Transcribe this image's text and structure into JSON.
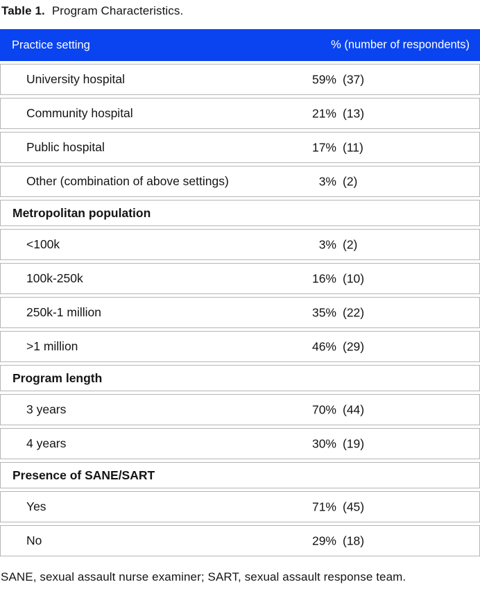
{
  "caption": {
    "label": "Table 1.",
    "title": "Program Characteristics."
  },
  "colors": {
    "header_bg": "#0a44f0",
    "header_text": "#ffffff",
    "row_border": "#b5b5b5",
    "body_text": "#141414"
  },
  "table": {
    "header": {
      "col1": "Practice setting",
      "col2": "% (number of respondents)"
    },
    "rows": [
      {
        "type": "data",
        "label": "University hospital",
        "pct": "59%",
        "n": "(37)"
      },
      {
        "type": "data",
        "label": "Community hospital",
        "pct": "21%",
        "n": "(13)"
      },
      {
        "type": "data",
        "label": "Public hospital",
        "pct": "17%",
        "n": "(11)"
      },
      {
        "type": "data",
        "label": "Other (combination of above settings)",
        "pct": "3%",
        "n": "(2)"
      },
      {
        "type": "section",
        "label": "Metropolitan population"
      },
      {
        "type": "data",
        "label": "<100k",
        "pct": "3%",
        "n": "(2)"
      },
      {
        "type": "data",
        "label": "100k-250k",
        "pct": "16%",
        "n": "(10)"
      },
      {
        "type": "data",
        "label": "250k-1 million",
        "pct": "35%",
        "n": "(22)"
      },
      {
        "type": "data",
        "label": ">1 million",
        "pct": "46%",
        "n": "(29)"
      },
      {
        "type": "section",
        "label": "Program length"
      },
      {
        "type": "data",
        "label": "3 years",
        "pct": "70%",
        "n": "(44)"
      },
      {
        "type": "data",
        "label": "4 years",
        "pct": "30%",
        "n": "(19)"
      },
      {
        "type": "section",
        "label": "Presence of SANE/SART"
      },
      {
        "type": "data",
        "label": "Yes",
        "pct": "71%",
        "n": "(45)"
      },
      {
        "type": "data",
        "label": "No",
        "pct": "29%",
        "n": "(18)"
      }
    ]
  },
  "footnote": "SANE, sexual assault nurse examiner; SART, sexual assault response team."
}
